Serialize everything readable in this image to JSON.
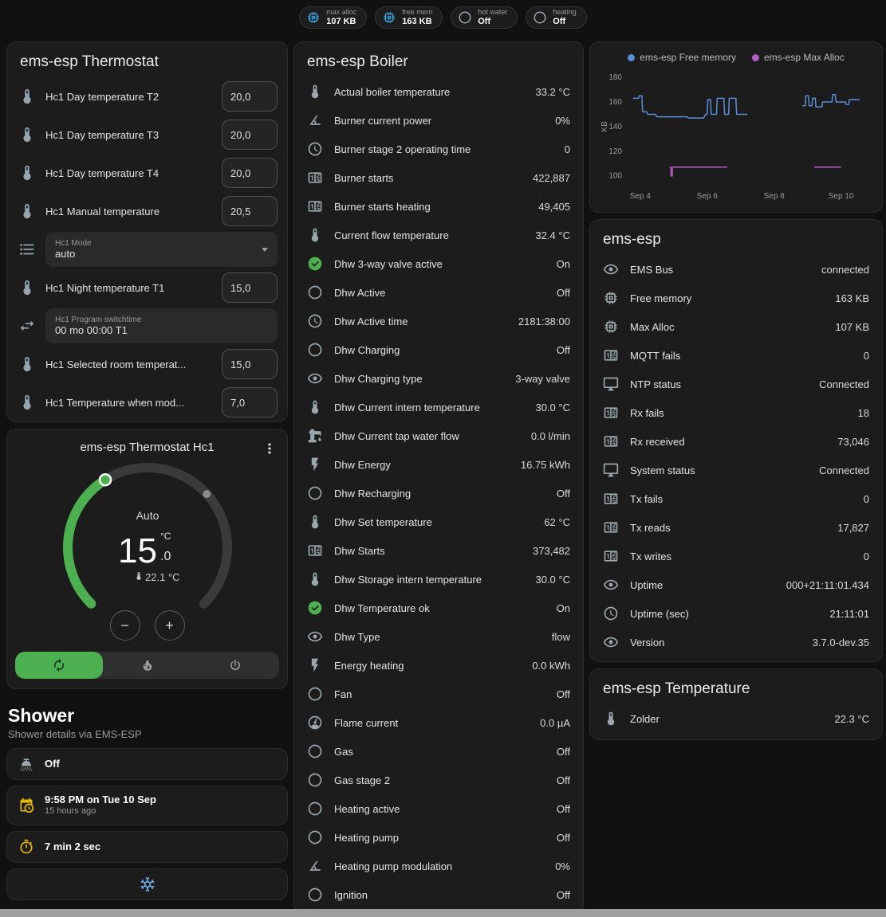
{
  "colors": {
    "background": "#111111",
    "card": "#1c1c1c",
    "accent_green": "#4caf50",
    "icon_default": "#9aa7ad",
    "icon_green": "#4caf50",
    "icon_amber": "#e5b60a",
    "icon_blue": "#3d9fe0",
    "icon_lightblue": "#6fa8dc"
  },
  "badges": [
    {
      "icon": "memory",
      "icon_color": "#3d9fe0",
      "label": "max alloc",
      "value": "107 KB"
    },
    {
      "icon": "memory",
      "icon_color": "#3d9fe0",
      "label": "free mem",
      "value": "163 KB"
    },
    {
      "icon": "circle-outline",
      "icon_color": "#9aa7ad",
      "label": "hot water",
      "value": "Off"
    },
    {
      "icon": "circle-outline",
      "icon_color": "#9aa7ad",
      "label": "heating",
      "value": "Off"
    }
  ],
  "thermostat": {
    "title": "ems-esp Thermostat",
    "rows": [
      {
        "icon": "thermometer",
        "label": "Hc1 Day temperature T2",
        "control": "number",
        "value": "20,0"
      },
      {
        "icon": "thermometer",
        "label": "Hc1 Day temperature T3",
        "control": "number",
        "value": "20,0"
      },
      {
        "icon": "thermometer",
        "label": "Hc1 Day temperature T4",
        "control": "number",
        "value": "20,0"
      },
      {
        "icon": "thermometer",
        "label": "Hc1 Manual temperature",
        "control": "number",
        "value": "20,5"
      },
      {
        "icon": "format-list",
        "field_label": "Hc1 Mode",
        "control": "select",
        "value": "auto"
      },
      {
        "icon": "thermometer",
        "label": "Hc1 Night temperature T1",
        "control": "number",
        "value": "15,0"
      },
      {
        "icon": "swap-horizontal",
        "field_label": "Hc1 Program switchtime",
        "control": "text",
        "value": "00 mo 00:00 T1"
      },
      {
        "icon": "thermometer",
        "label": "Hc1 Selected room temperat...",
        "control": "number",
        "value": "15,0"
      },
      {
        "icon": "thermometer",
        "label": "Hc1 Temperature when mod...",
        "control": "number",
        "value": "7,0"
      }
    ]
  },
  "dial": {
    "title": "ems-esp Thermostat Hc1",
    "mode": "Auto",
    "target_int": "15",
    "target_decimal": ".0",
    "unit": "°C",
    "current": "22.1 °C",
    "minus": "−",
    "plus": "+",
    "modes": [
      {
        "name": "auto",
        "icon": "autorenew",
        "active": true
      },
      {
        "name": "heat",
        "icon": "fire",
        "active": false
      },
      {
        "name": "off",
        "icon": "power",
        "active": false
      }
    ]
  },
  "shower": {
    "heading": "Shower",
    "subtitle": "Shower details via EMS-ESP",
    "cards": [
      {
        "icon": "shower-head",
        "icon_color": "#9aa7ad",
        "primary": "Off"
      },
      {
        "icon": "calendar-clock",
        "icon_color": "#e5b60a",
        "primary": "9:58 PM on Tue 10 Sep",
        "secondary": "15 hours ago"
      },
      {
        "icon": "timer",
        "icon_color": "#e5b60a",
        "primary": "7 min 2 sec"
      },
      {
        "icon": "snowflake",
        "icon_color": "#6fa8dc",
        "partial": true
      }
    ]
  },
  "boiler": {
    "title": "ems-esp Boiler",
    "rows": [
      {
        "icon": "thermometer",
        "label": "Actual boiler temperature",
        "value": "33.2 °C"
      },
      {
        "icon": "angle-acute",
        "label": "Burner current power",
        "value": "0%"
      },
      {
        "icon": "clock-outline",
        "label": "Burner stage 2 operating time",
        "value": "0"
      },
      {
        "icon": "counter",
        "label": "Burner starts",
        "value": "422,887"
      },
      {
        "icon": "counter",
        "label": "Burner starts heating",
        "value": "49,405"
      },
      {
        "icon": "thermometer",
        "label": "Current flow temperature",
        "value": "32.4 °C"
      },
      {
        "icon": "check-circle",
        "icon_color": "#4caf50",
        "label": "Dhw 3-way valve active",
        "value": "On"
      },
      {
        "icon": "circle-outline",
        "label": "Dhw Active",
        "value": "Off"
      },
      {
        "icon": "clock-outline",
        "label": "Dhw Active time",
        "value": "2181:38:00"
      },
      {
        "icon": "circle-outline",
        "label": "Dhw Charging",
        "value": "Off"
      },
      {
        "icon": "eye",
        "label": "Dhw Charging type",
        "value": "3-way valve"
      },
      {
        "icon": "thermometer",
        "label": "Dhw Current intern temperature",
        "value": "30.0 °C"
      },
      {
        "icon": "water-pump",
        "label": "Dhw Current tap water flow",
        "value": "0.0 l/min"
      },
      {
        "icon": "flash",
        "label": "Dhw Energy",
        "value": "16.75 kWh"
      },
      {
        "icon": "circle-outline",
        "label": "Dhw Recharging",
        "value": "Off"
      },
      {
        "icon": "thermometer",
        "label": "Dhw Set temperature",
        "value": "62 °C"
      },
      {
        "icon": "counter",
        "label": "Dhw Starts",
        "value": "373,482"
      },
      {
        "icon": "thermometer",
        "label": "Dhw Storage intern temperature",
        "value": "30.0 °C"
      },
      {
        "icon": "check-circle",
        "icon_color": "#4caf50",
        "label": "Dhw Temperature ok",
        "value": "On"
      },
      {
        "icon": "eye",
        "label": "Dhw Type",
        "value": "flow"
      },
      {
        "icon": "flash",
        "label": "Energy heating",
        "value": "0.0 kWh"
      },
      {
        "icon": "circle-outline",
        "label": "Fan",
        "value": "Off"
      },
      {
        "icon": "gauge",
        "label": "Flame current",
        "value": "0.0 µA"
      },
      {
        "icon": "circle-outline",
        "label": "Gas",
        "value": "Off"
      },
      {
        "icon": "circle-outline",
        "label": "Gas stage 2",
        "value": "Off"
      },
      {
        "icon": "circle-outline",
        "label": "Heating active",
        "value": "Off"
      },
      {
        "icon": "circle-outline",
        "label": "Heating pump",
        "value": "Off"
      },
      {
        "icon": "angle-acute",
        "label": "Heating pump modulation",
        "value": "0%"
      },
      {
        "icon": "circle-outline",
        "label": "Ignition",
        "value": "Off"
      }
    ]
  },
  "chart_data": {
    "type": "line",
    "ylabel": "KB",
    "ylim": [
      92,
      184
    ],
    "yticks": [
      100,
      120,
      140,
      160,
      180
    ],
    "xlim": [
      3.6,
      10.7
    ],
    "xticks": [
      {
        "x": 4,
        "label": "Sep 4"
      },
      {
        "x": 6,
        "label": "Sep 6"
      },
      {
        "x": 8,
        "label": "Sep 8"
      },
      {
        "x": 10,
        "label": "Sep 10"
      }
    ],
    "legend_position": "top",
    "grid": false,
    "series": [
      {
        "name": "ems-esp Free memory",
        "color": "#5a8fd8",
        "segments": [
          [
            [
              3.78,
              163
            ],
            [
              3.95,
              163
            ],
            [
              3.97,
              165
            ],
            [
              4.05,
              165
            ],
            [
              4.07,
              152
            ],
            [
              4.2,
              152
            ],
            [
              4.22,
              150
            ],
            [
              4.45,
              150
            ],
            [
              4.5,
              148
            ],
            [
              5.4,
              148
            ],
            [
              5.45,
              147
            ],
            [
              5.9,
              147
            ],
            [
              5.95,
              150
            ],
            [
              6.0,
              150
            ],
            [
              6.02,
              162
            ],
            [
              6.1,
              162
            ],
            [
              6.12,
              150
            ],
            [
              6.28,
              150
            ],
            [
              6.3,
              163
            ],
            [
              6.5,
              163
            ],
            [
              6.52,
              150
            ],
            [
              6.64,
              150
            ],
            [
              6.66,
              163
            ],
            [
              6.86,
              163
            ],
            [
              6.88,
              150
            ],
            [
              7.2,
              150
            ]
          ],
          [
            [
              8.85,
              157
            ],
            [
              8.93,
              157
            ],
            [
              8.95,
              165
            ],
            [
              9.03,
              165
            ],
            [
              9.05,
              157
            ],
            [
              9.13,
              157
            ],
            [
              9.15,
              163
            ],
            [
              9.23,
              163
            ],
            [
              9.25,
              156
            ],
            [
              9.43,
              156
            ],
            [
              9.45,
              160
            ],
            [
              9.73,
              160
            ],
            [
              9.75,
              166
            ],
            [
              9.83,
              166
            ],
            [
              9.85,
              160
            ],
            [
              10.13,
              160
            ],
            [
              10.15,
              158
            ],
            [
              10.23,
              158
            ],
            [
              10.25,
              162
            ],
            [
              10.55,
              162
            ]
          ]
        ]
      },
      {
        "name": "ems-esp Max Alloc",
        "color": "#b05fc0",
        "segments": [
          [
            [
              4.88,
              107
            ],
            [
              4.92,
              107
            ],
            [
              4.92,
              100
            ],
            [
              4.96,
              100
            ],
            [
              4.96,
              107
            ],
            [
              6.6,
              107
            ]
          ],
          [
            [
              9.2,
              107
            ],
            [
              10.0,
              107
            ]
          ]
        ]
      }
    ]
  },
  "device": {
    "title": "ems-esp",
    "rows": [
      {
        "icon": "eye",
        "label": "EMS Bus",
        "value": "connected"
      },
      {
        "icon": "memory",
        "label": "Free memory",
        "value": "163 KB"
      },
      {
        "icon": "memory",
        "label": "Max Alloc",
        "value": "107 KB"
      },
      {
        "icon": "counter",
        "label": "MQTT fails",
        "value": "0"
      },
      {
        "icon": "monitor",
        "label": "NTP status",
        "value": "Connected"
      },
      {
        "icon": "counter",
        "label": "Rx fails",
        "value": "18"
      },
      {
        "icon": "counter",
        "label": "Rx received",
        "value": "73,046"
      },
      {
        "icon": "monitor",
        "label": "System status",
        "value": "Connected"
      },
      {
        "icon": "counter",
        "label": "Tx fails",
        "value": "0"
      },
      {
        "icon": "counter",
        "label": "Tx reads",
        "value": "17,827"
      },
      {
        "icon": "counter",
        "label": "Tx writes",
        "value": "0"
      },
      {
        "icon": "eye",
        "label": "Uptime",
        "value": "000+21:11:01.434"
      },
      {
        "icon": "clock-outline",
        "label": "Uptime (sec)",
        "value": "21:11:01"
      },
      {
        "icon": "eye",
        "label": "Version",
        "value": "3.7.0-dev.35"
      }
    ]
  },
  "temperature": {
    "title": "ems-esp Temperature",
    "rows": [
      {
        "icon": "thermometer",
        "label": "Zolder",
        "value": "22.3 °C"
      }
    ]
  }
}
